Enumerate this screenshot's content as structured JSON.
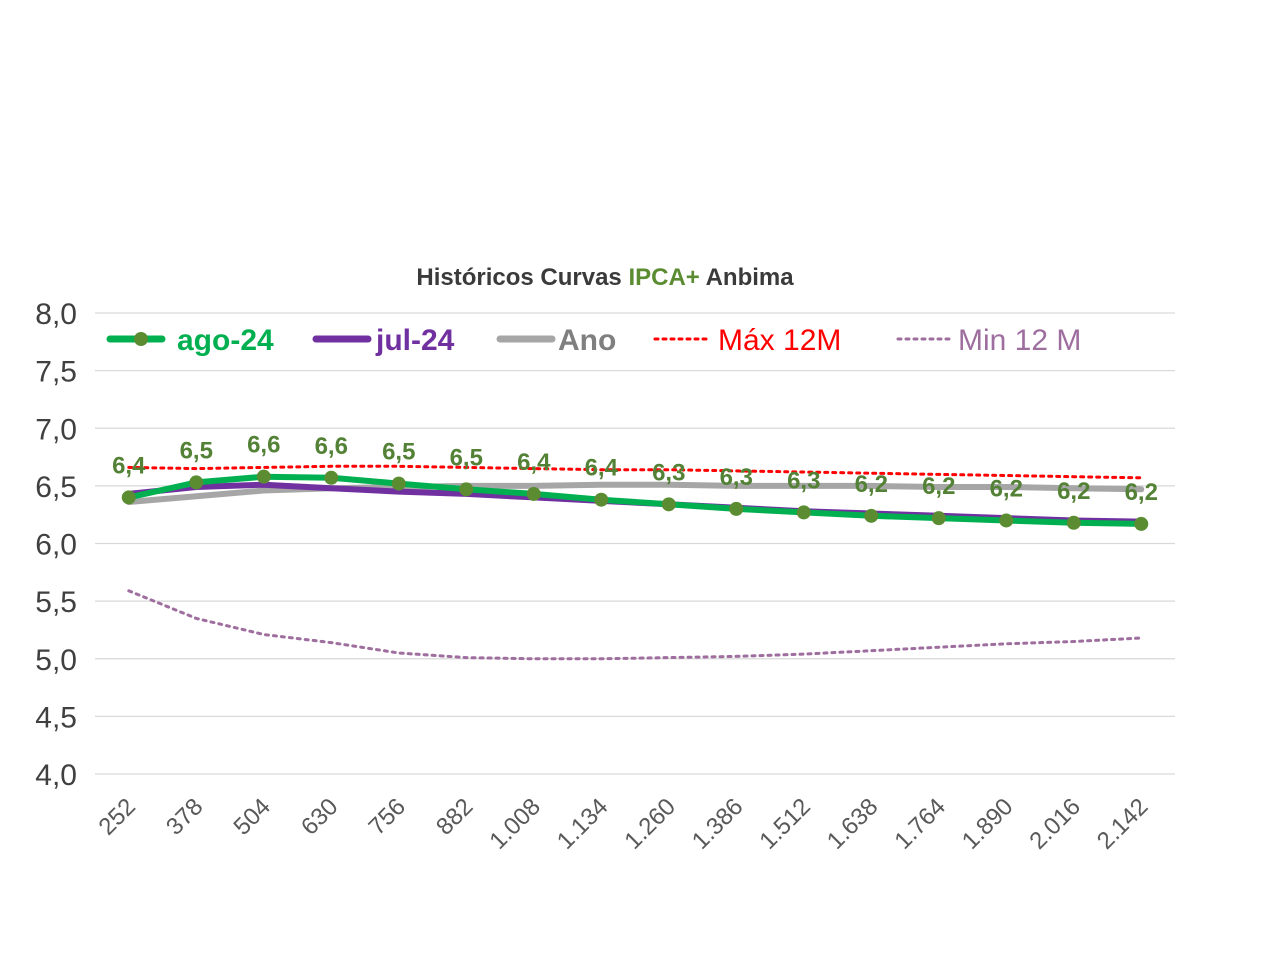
{
  "chart_data": {
    "type": "line",
    "title_parts": [
      {
        "text": "Históricos Curvas ",
        "color": "#3a3a3a"
      },
      {
        "text": "IPCA+",
        "color": "#5b8c32"
      },
      {
        "text": " Anbima",
        "color": "#3a3a3a"
      }
    ],
    "categories": [
      "252",
      "378",
      "504",
      "630",
      "756",
      "882",
      "1.008",
      "1.134",
      "1.260",
      "1.386",
      "1.512",
      "1.638",
      "1.764",
      "1.890",
      "2.016",
      "2.142"
    ],
    "y_ticks": [
      "8,0",
      "7,5",
      "7,0",
      "6,5",
      "6,0",
      "5,5",
      "5,0",
      "4,5",
      "4,0"
    ],
    "ylim": [
      4.0,
      8.0
    ],
    "grid": true,
    "legend_position": "top",
    "series": [
      {
        "name": "ago-24",
        "color": "#00b050",
        "style": "solid-markers",
        "values": [
          6.4,
          6.53,
          6.58,
          6.57,
          6.52,
          6.47,
          6.43,
          6.38,
          6.34,
          6.3,
          6.27,
          6.24,
          6.22,
          6.2,
          6.18,
          6.17
        ],
        "data_labels": [
          "6,4",
          "6,5",
          "6,6",
          "6,6",
          "6,5",
          "6,5",
          "6,4",
          "6,4",
          "6,3",
          "6,3",
          "6,3",
          "6,2",
          "6,2",
          "6,2",
          "6,2",
          "6,2"
        ]
      },
      {
        "name": "jul-24",
        "color": "#7030a0",
        "style": "solid",
        "values": [
          6.43,
          6.49,
          6.51,
          6.48,
          6.45,
          6.43,
          6.4,
          6.37,
          6.34,
          6.31,
          6.28,
          6.26,
          6.24,
          6.22,
          6.2,
          6.19
        ]
      },
      {
        "name": "Ano",
        "color": "#a6a6a6",
        "style": "solid",
        "values": [
          6.36,
          6.41,
          6.46,
          6.48,
          6.49,
          6.5,
          6.5,
          6.51,
          6.51,
          6.5,
          6.5,
          6.5,
          6.49,
          6.49,
          6.48,
          6.47
        ]
      },
      {
        "name": "Máx 12M",
        "color": "#ff0000",
        "style": "dotted",
        "values": [
          6.66,
          6.65,
          6.66,
          6.67,
          6.67,
          6.66,
          6.65,
          6.64,
          6.64,
          6.63,
          6.62,
          6.61,
          6.6,
          6.59,
          6.58,
          6.57
        ]
      },
      {
        "name": "Min 12 M",
        "color": "#9e6e9e",
        "style": "dotted",
        "values": [
          5.59,
          5.35,
          5.21,
          5.14,
          5.05,
          5.01,
          5.0,
          5.0,
          5.01,
          5.02,
          5.04,
          5.07,
          5.1,
          5.13,
          5.15,
          5.18
        ]
      }
    ]
  }
}
